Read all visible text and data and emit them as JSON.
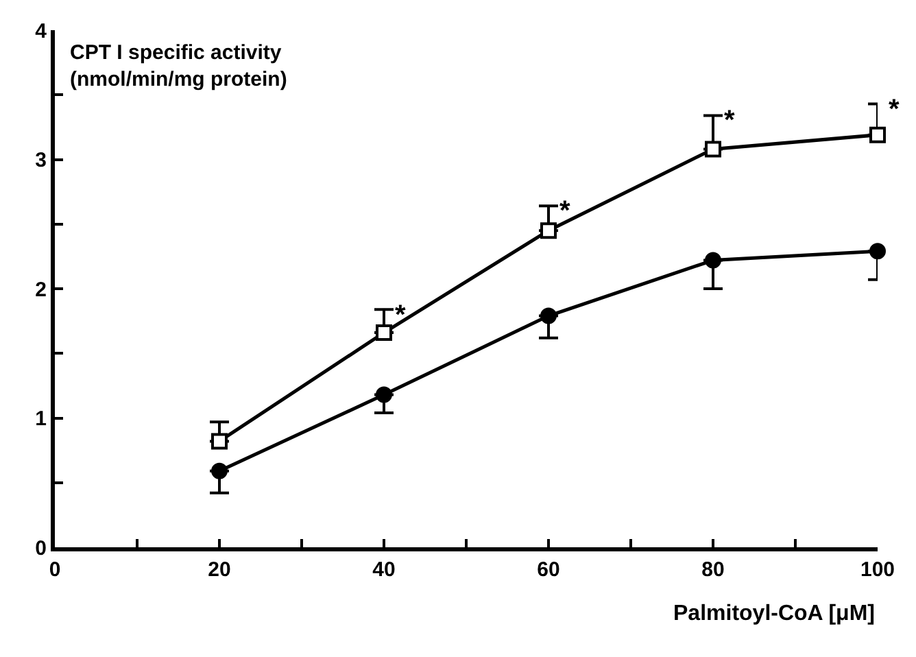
{
  "chart_data": {
    "type": "line",
    "xlabel": "Palmitoyl-CoA [μM]",
    "ylabel": "CPT I specific activity\n(nmol/min/mg protein)",
    "x": [
      20,
      40,
      60,
      80,
      100
    ],
    "series": [
      {
        "color": "#000000",
        "marker": "square",
        "values": [
          0.82,
          1.66,
          2.45,
          3.08,
          3.19
        ],
        "errors": [
          [
            0.82,
            0.97
          ],
          [
            1.66,
            1.84
          ],
          [
            2.45,
            2.64
          ],
          [
            3.08,
            3.34
          ],
          [
            3.19,
            3.43
          ]
        ]
      },
      {
        "color": "#000000",
        "marker": "circle",
        "values": [
          0.59,
          1.18,
          1.79,
          2.22,
          2.29
        ],
        "errors": [
          [
            0.42,
            0.59
          ],
          [
            1.04,
            1.18
          ],
          [
            1.62,
            1.79
          ],
          [
            2.0,
            2.22
          ],
          [
            2.07,
            2.29
          ]
        ]
      }
    ],
    "annotations": [
      {
        "text": "*",
        "x": 40,
        "y": 1.84
      },
      {
        "text": "*",
        "x": 60,
        "y": 2.64
      },
      {
        "text": "*",
        "x": 80,
        "y": 3.34
      },
      {
        "text": "*",
        "x": 100,
        "y": 3.43
      }
    ],
    "xlim": [
      0,
      100
    ],
    "xticks": [
      0,
      {
        "value": 10,
        "label": null
      },
      20,
      {
        "value": 30,
        "label": null
      },
      40,
      {
        "value": 50,
        "label": null
      },
      60,
      {
        "value": 70,
        "label": null
      },
      80,
      {
        "value": 90,
        "label": null
      },
      100
    ],
    "ylim": [
      0,
      4
    ],
    "yticks": [
      0,
      {
        "value": 0.5,
        "label": null
      },
      1,
      {
        "value": 1.5,
        "label": null
      },
      2,
      {
        "value": 2.5,
        "label": null
      },
      3,
      {
        "value": 3.5,
        "label": null
      },
      4
    ],
    "grid": false,
    "line_style": "solid"
  }
}
